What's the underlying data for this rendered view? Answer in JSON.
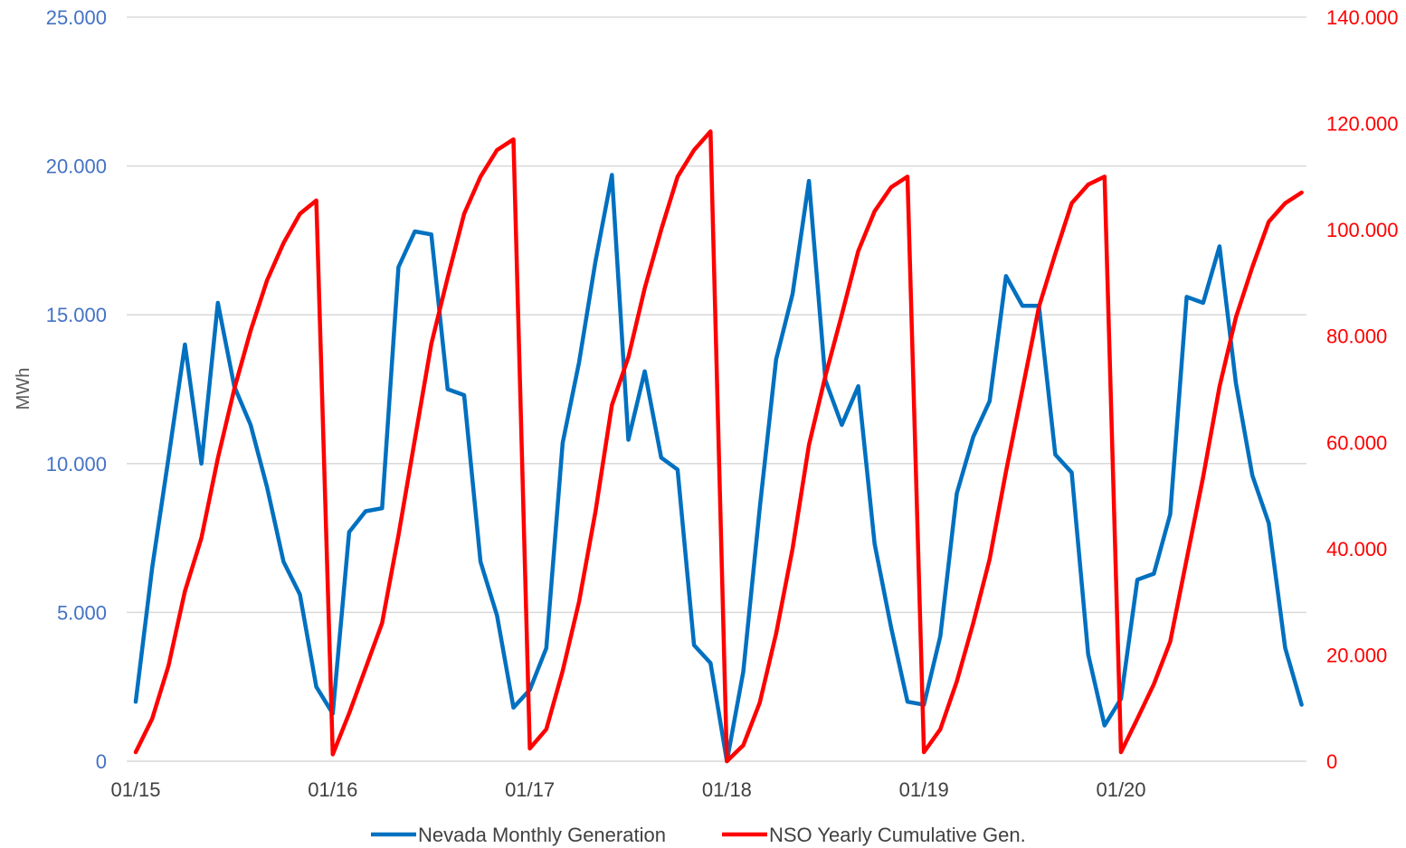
{
  "chart_data": {
    "type": "line",
    "title": "",
    "xlabel": "",
    "ylabel": "MWh",
    "y2label": "",
    "ylim": [
      0,
      25000
    ],
    "y2lim": [
      0,
      140000
    ],
    "y_ticks": [
      "0",
      "5.000",
      "10.000",
      "15.000",
      "20.000",
      "25.000"
    ],
    "y2_ticks": [
      "0",
      "20.000",
      "40.000",
      "60.000",
      "80.000",
      "100.000",
      "120.000",
      "140.000"
    ],
    "x_ticks": [
      {
        "month": "2015-01",
        "label": "01/15"
      },
      {
        "month": "2016-01",
        "label": "01/16"
      },
      {
        "month": "2017-01",
        "label": "01/17"
      },
      {
        "month": "2018-01",
        "label": "01/18"
      },
      {
        "month": "2019-01",
        "label": "01/19"
      },
      {
        "month": "2020-01",
        "label": "01/20"
      }
    ],
    "grid": true,
    "legend_position": "bottom",
    "x": [
      "2015-01",
      "2015-02",
      "2015-03",
      "2015-04",
      "2015-05",
      "2015-06",
      "2015-07",
      "2015-08",
      "2015-09",
      "2015-10",
      "2015-11",
      "2015-12",
      "2016-01",
      "2016-02",
      "2016-03",
      "2016-04",
      "2016-05",
      "2016-06",
      "2016-07",
      "2016-08",
      "2016-09",
      "2016-10",
      "2016-11",
      "2016-12",
      "2017-01",
      "2017-02",
      "2017-03",
      "2017-04",
      "2017-05",
      "2017-06",
      "2017-07",
      "2017-08",
      "2017-09",
      "2017-10",
      "2017-11",
      "2017-12",
      "2018-01",
      "2018-02",
      "2018-03",
      "2018-04",
      "2018-05",
      "2018-06",
      "2018-07",
      "2018-08",
      "2018-09",
      "2018-10",
      "2018-11",
      "2018-12",
      "2019-01",
      "2019-02",
      "2019-03",
      "2019-04",
      "2019-05",
      "2019-06",
      "2019-07",
      "2019-08",
      "2019-09",
      "2019-10",
      "2019-11",
      "2019-12",
      "2020-01",
      "2020-02",
      "2020-03",
      "2020-04",
      "2020-05",
      "2020-06",
      "2020-07",
      "2020-08",
      "2020-09",
      "2020-10",
      "2020-11",
      "2020-12"
    ],
    "series": [
      {
        "name": "Nevada Monthly Generation",
        "axis": "left",
        "color": "#0070C0",
        "values": [
          2000,
          6500,
          10200,
          14000,
          10000,
          15400,
          12600,
          11300,
          9200,
          6700,
          5600,
          2500,
          1600,
          7700,
          8400,
          8500,
          16600,
          17800,
          17700,
          12500,
          12300,
          6700,
          4900,
          1800,
          2400,
          3800,
          10700,
          13400,
          16800,
          19700,
          10800,
          13100,
          10200,
          9800,
          3900,
          3300,
          0,
          3000,
          8500,
          13500,
          15700,
          19500,
          12800,
          11300,
          12600,
          7300,
          4500,
          2000,
          1900,
          4200,
          9000,
          10900,
          12100,
          16300,
          15300,
          15300,
          10300,
          9700,
          3600,
          1200,
          2100,
          6100,
          6300,
          8300,
          15600,
          15400,
          17300,
          12700,
          9600,
          8000,
          3800,
          1900
        ]
      },
      {
        "name": "NSO Yearly Cumulative Gen.",
        "axis": "right",
        "color": "#FF0000",
        "values": [
          1700,
          8000,
          18000,
          32000,
          42000,
          57000,
          70000,
          81000,
          90500,
          97500,
          103000,
          105500,
          1300,
          9000,
          17500,
          26000,
          42500,
          60500,
          78500,
          91000,
          103000,
          110000,
          115000,
          117000,
          2400,
          6000,
          17000,
          30000,
          47000,
          67000,
          76000,
          89000,
          100000,
          110000,
          115000,
          118500,
          0,
          3000,
          11000,
          24000,
          40000,
          59500,
          72500,
          84000,
          96000,
          103500,
          108000,
          110000,
          1700,
          6000,
          15000,
          26000,
          38000,
          54500,
          70000,
          85500,
          95500,
          105000,
          108500,
          110000,
          1700,
          8000,
          14500,
          22500,
          38000,
          53500,
          70500,
          83500,
          93000,
          101500,
          105000,
          107000
        ]
      }
    ]
  }
}
